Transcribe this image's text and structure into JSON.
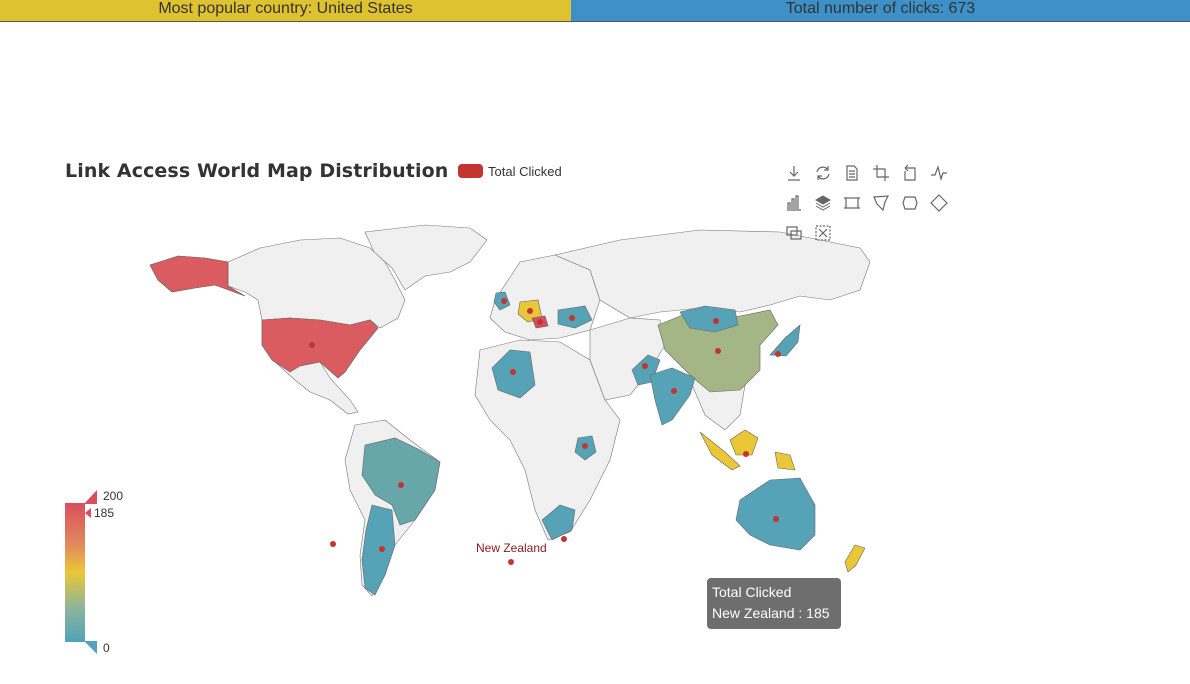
{
  "header": {
    "popular_text": "Most popular country: United States",
    "clicks_text": "Total number of clicks: 673",
    "popular_color": "#dfc22f",
    "clicks_color": "#3d90c8"
  },
  "chart": {
    "title": "Link Access World Map Distribution",
    "legend_label": "Total Clicked",
    "legend_color": "#c23531"
  },
  "toolbox": {
    "tools": [
      "download-icon",
      "refresh-icon",
      "data-view-icon",
      "zoom-select-icon",
      "zoom-back-icon",
      "line-chart-icon",
      "bar-chart-icon",
      "stack-icon",
      "rect-select-icon",
      "polygon-select-icon",
      "line-select-icon",
      "free-select-icon",
      "keep-select-icon",
      "clear-select-icon"
    ]
  },
  "visual_map": {
    "max_label": "200",
    "min_label": "0",
    "handle_label": "185",
    "colors": [
      "#d94e5d",
      "#eac736",
      "#50a3ba"
    ]
  },
  "tooltip": {
    "series": "Total Clicked",
    "line": "New Zealand : 185"
  },
  "map_label": "New Zealand",
  "chart_data": {
    "type": "map",
    "title": "Link Access World Map Distribution",
    "series": [
      {
        "name": "Total Clicked",
        "data": [
          {
            "name": "United States",
            "value": 185
          },
          {
            "name": "New Zealand",
            "value": 185
          }
        ]
      }
    ],
    "visual_map": {
      "min": 0,
      "max": 200,
      "selected_max": 185
    }
  }
}
